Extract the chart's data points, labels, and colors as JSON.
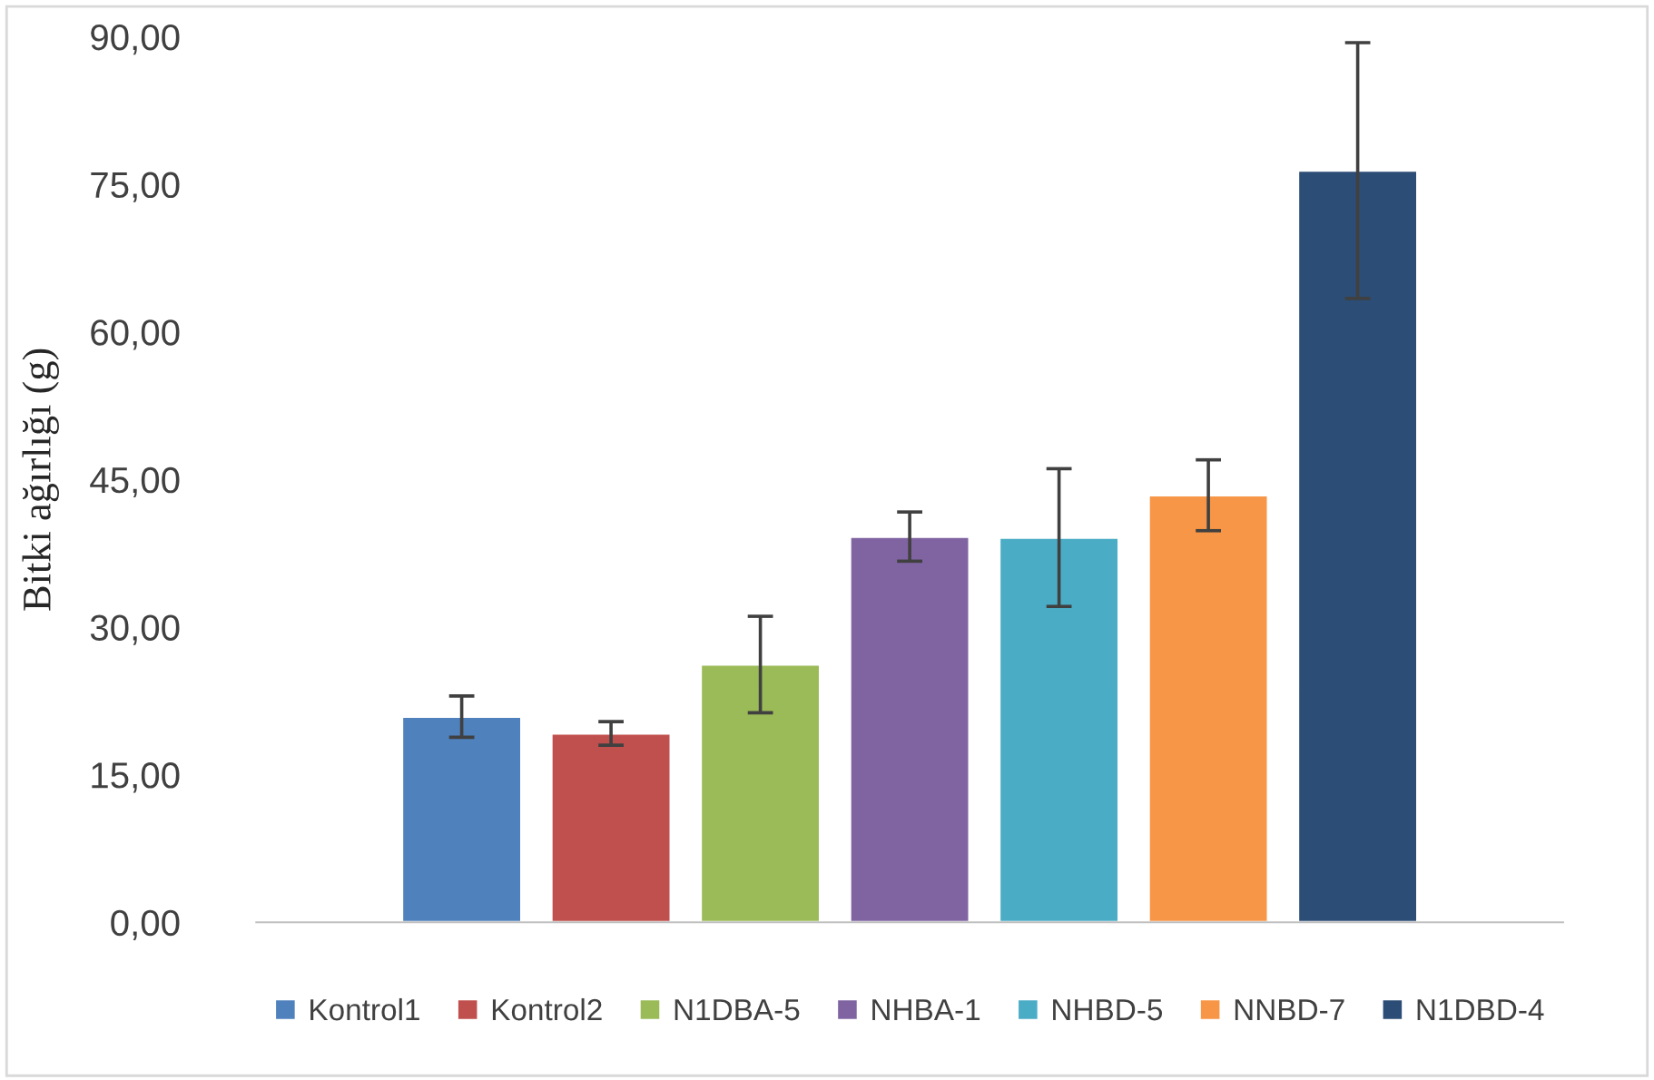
{
  "chart_data": {
    "type": "bar",
    "ylabel": "Bitki ağırlığı (g)",
    "categories": [
      null
    ],
    "series": [
      {
        "name": "Kontrol1",
        "color": "#4f81bd",
        "values": [
          20.9
        ],
        "errors": [
          2.1
        ]
      },
      {
        "name": "Kontrol2",
        "color": "#c0504d",
        "values": [
          19.2
        ],
        "errors": [
          1.2
        ]
      },
      {
        "name": "N1DBA-5",
        "color": "#9bbb59",
        "values": [
          26.2
        ],
        "errors": [
          4.9
        ]
      },
      {
        "name": "NHBA-1",
        "color": "#8064a2",
        "values": [
          39.2
        ],
        "errors": [
          2.5
        ]
      },
      {
        "name": "NHBD-5",
        "color": "#4bacc6",
        "values": [
          39.1
        ],
        "errors": [
          7.0
        ]
      },
      {
        "name": "NNBD-7",
        "color": "#f79646",
        "values": [
          43.4
        ],
        "errors": [
          3.6
        ]
      },
      {
        "name": "N1DBD-4",
        "color": "#2c4d75",
        "values": [
          76.4
        ],
        "errors": [
          13.0
        ]
      }
    ],
    "ylim": [
      0,
      90
    ],
    "yticks": [
      {
        "value": 0,
        "label": "0,00"
      },
      {
        "value": 15,
        "label": "15,00"
      },
      {
        "value": 30,
        "label": "30,00"
      },
      {
        "value": 45,
        "label": "45,00"
      },
      {
        "value": 60,
        "label": "60,00"
      },
      {
        "value": 75,
        "label": "75,00"
      },
      {
        "value": 90,
        "label": "90,00"
      }
    ],
    "tick_labels": "y",
    "legend": "bottom"
  }
}
